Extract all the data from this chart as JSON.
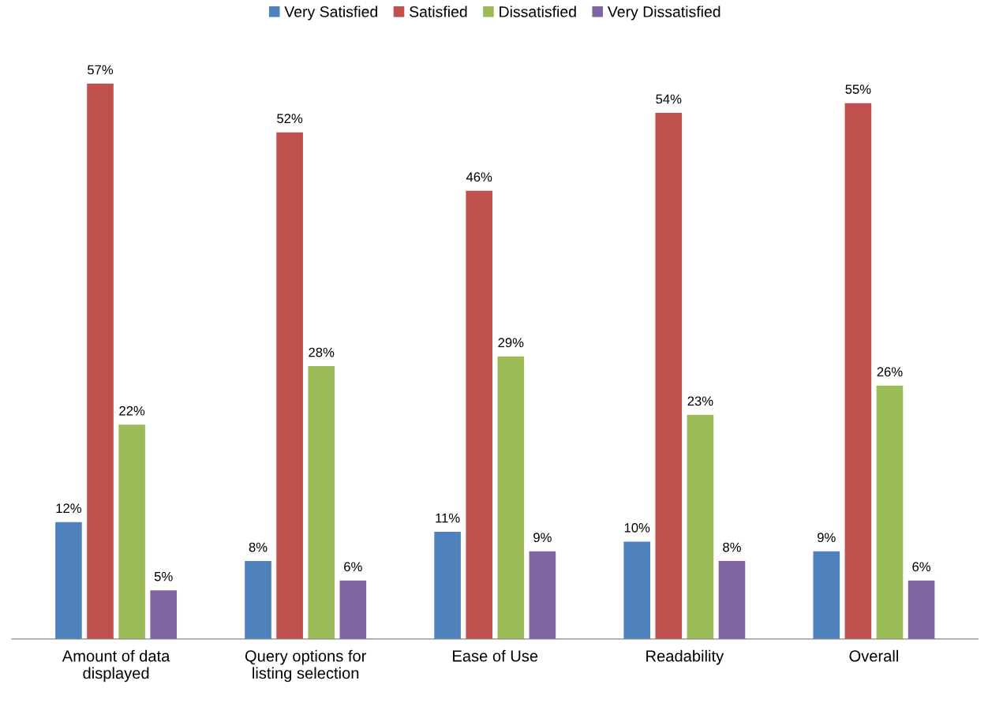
{
  "chart_data": {
    "type": "bar",
    "categories": [
      "Amount of data\ndisplayed",
      "Query options for\nlisting selection",
      "Ease of Use",
      "Readability",
      "Overall"
    ],
    "series": [
      {
        "name": "Very Satisfied",
        "color": "#4f81bd",
        "values": [
          12,
          8,
          11,
          10,
          9
        ],
        "value_labels": [
          "12%",
          "8%",
          "11%",
          "10%",
          "9%"
        ]
      },
      {
        "name": "Satisfied",
        "color": "#c0504d",
        "values": [
          57,
          52,
          46,
          54,
          55
        ],
        "value_labels": [
          "57%",
          "52%",
          "46%",
          "54%",
          "55%"
        ]
      },
      {
        "name": "Dissatisfied",
        "color": "#9bbb59",
        "values": [
          22,
          28,
          29,
          23,
          26
        ],
        "value_labels": [
          "22%",
          "28%",
          "29%",
          "23%",
          "26%"
        ]
      },
      {
        "name": "Very Dissatisfied",
        "color": "#8064a2",
        "values": [
          5,
          6,
          9,
          8,
          6
        ],
        "value_labels": [
          "5%",
          "6%",
          "9%",
          "8%",
          "6%"
        ]
      }
    ],
    "legend": "top",
    "grid": false
  }
}
